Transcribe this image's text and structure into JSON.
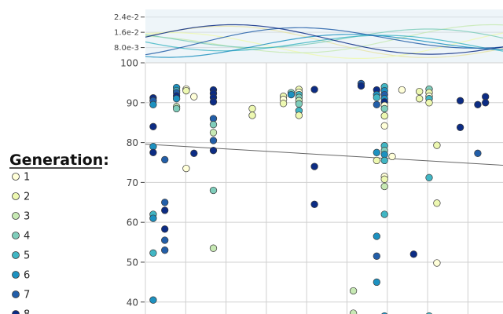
{
  "chart_data": {
    "type": "scatter",
    "legend": {
      "title": "Generation:",
      "placement": "left",
      "entries": [
        {
          "label": "1",
          "color": "#ffffd9"
        },
        {
          "label": "2",
          "color": "#edf8b1"
        },
        {
          "label": "3",
          "color": "#c7e9b4"
        },
        {
          "label": "4",
          "color": "#7fcdbb"
        },
        {
          "label": "5",
          "color": "#41b6c4"
        },
        {
          "label": "6",
          "color": "#1d91c0"
        },
        {
          "label": "7",
          "color": "#225ea8"
        },
        {
          "label": "8",
          "color": "#0c2c84"
        }
      ]
    },
    "y_axis": {
      "ylim": [
        37,
        100
      ],
      "ticks": [
        40,
        50,
        60,
        70,
        80,
        90,
        100
      ]
    },
    "x_axis": {
      "xlim": [
        0,
        9.2
      ],
      "category_gridlines": 10
    },
    "grid": true,
    "trendline": {
      "x": [
        0,
        9.2
      ],
      "y": [
        79.6,
        74.3
      ]
    },
    "density_panel": {
      "ticks": [
        "8.0e-3",
        "1.6e-2",
        "2.4e-2"
      ],
      "tick_values": [
        0.008,
        0.016,
        0.024
      ],
      "ylim": [
        0,
        0.028
      ]
    },
    "points": [
      {
        "x": 0.2,
        "y": 91.2,
        "g": 8
      },
      {
        "x": 0.2,
        "y": 90.5,
        "g": 7
      },
      {
        "x": 0.2,
        "y": 89.5,
        "g": 6
      },
      {
        "x": 0.2,
        "y": 84,
        "g": 8
      },
      {
        "x": 0.2,
        "y": 79,
        "g": 6
      },
      {
        "x": 0.2,
        "y": 77.5,
        "g": 8
      },
      {
        "x": 0.2,
        "y": 62,
        "g": 5
      },
      {
        "x": 0.2,
        "y": 61,
        "g": 6
      },
      {
        "x": 0.2,
        "y": 52.3,
        "g": 5
      },
      {
        "x": 0.2,
        "y": 40.5,
        "g": 6
      },
      {
        "x": 0.5,
        "y": 75.7,
        "g": 7
      },
      {
        "x": 0.5,
        "y": 65,
        "g": 7
      },
      {
        "x": 0.5,
        "y": 63,
        "g": 8
      },
      {
        "x": 0.5,
        "y": 58.3,
        "g": 8
      },
      {
        "x": 0.5,
        "y": 55.5,
        "g": 7
      },
      {
        "x": 0.5,
        "y": 53,
        "g": 7
      },
      {
        "x": 0.8,
        "y": 93.8,
        "g": 6
      },
      {
        "x": 0.8,
        "y": 93,
        "g": 5
      },
      {
        "x": 0.8,
        "y": 92.5,
        "g": 7
      },
      {
        "x": 0.8,
        "y": 91.7,
        "g": 8
      },
      {
        "x": 0.8,
        "y": 91,
        "g": 6
      },
      {
        "x": 0.8,
        "y": 89,
        "g": 3
      },
      {
        "x": 0.8,
        "y": 88.5,
        "g": 4
      },
      {
        "x": 1.05,
        "y": 93.4,
        "g": 1
      },
      {
        "x": 1.05,
        "y": 73.5,
        "g": 1
      },
      {
        "x": 1.05,
        "y": 93,
        "g": 2
      },
      {
        "x": 1.25,
        "y": 91.5,
        "g": 1
      },
      {
        "x": 1.25,
        "y": 77.3,
        "g": 8
      },
      {
        "x": 1.75,
        "y": 93.2,
        "g": 8
      },
      {
        "x": 1.75,
        "y": 92.3,
        "g": 8
      },
      {
        "x": 1.75,
        "y": 91.3,
        "g": 8
      },
      {
        "x": 1.75,
        "y": 90.2,
        "g": 8
      },
      {
        "x": 1.75,
        "y": 86,
        "g": 7
      },
      {
        "x": 1.75,
        "y": 84.5,
        "g": 4
      },
      {
        "x": 1.75,
        "y": 82.5,
        "g": 3
      },
      {
        "x": 1.75,
        "y": 80.5,
        "g": 7
      },
      {
        "x": 1.75,
        "y": 78,
        "g": 8
      },
      {
        "x": 1.75,
        "y": 68,
        "g": 4
      },
      {
        "x": 1.75,
        "y": 53.5,
        "g": 3
      },
      {
        "x": 2.75,
        "y": 88.5,
        "g": 2
      },
      {
        "x": 2.75,
        "y": 86.8,
        "g": 2
      },
      {
        "x": 3.55,
        "y": 91.6,
        "g": 2
      },
      {
        "x": 3.55,
        "y": 90.8,
        "g": 1
      },
      {
        "x": 3.55,
        "y": 89.8,
        "g": 2
      },
      {
        "x": 3.75,
        "y": 92.5,
        "g": 4
      },
      {
        "x": 3.75,
        "y": 92,
        "g": 6
      },
      {
        "x": 3.95,
        "y": 93.3,
        "g": 2
      },
      {
        "x": 3.95,
        "y": 92.6,
        "g": 1
      },
      {
        "x": 3.95,
        "y": 92,
        "g": 5
      },
      {
        "x": 3.95,
        "y": 91.3,
        "g": 4
      },
      {
        "x": 3.95,
        "y": 90.5,
        "g": 3
      },
      {
        "x": 3.95,
        "y": 89.7,
        "g": 4
      },
      {
        "x": 3.95,
        "y": 88,
        "g": 5
      },
      {
        "x": 3.95,
        "y": 86.8,
        "g": 2
      },
      {
        "x": 4.35,
        "y": 93.3,
        "g": 8
      },
      {
        "x": 4.35,
        "y": 74,
        "g": 8
      },
      {
        "x": 4.35,
        "y": 64.5,
        "g": 8
      },
      {
        "x": 5.55,
        "y": 94.8,
        "g": 7
      },
      {
        "x": 5.55,
        "y": 94.2,
        "g": 8
      },
      {
        "x": 5.35,
        "y": 42.8,
        "g": 3
      },
      {
        "x": 5.35,
        "y": 37.2,
        "g": 3
      },
      {
        "x": 5.95,
        "y": 93.2,
        "g": 8
      },
      {
        "x": 5.95,
        "y": 92,
        "g": 6
      },
      {
        "x": 5.95,
        "y": 91.3,
        "g": 5
      },
      {
        "x": 5.95,
        "y": 89.5,
        "g": 7
      },
      {
        "x": 5.95,
        "y": 77.5,
        "g": 6
      },
      {
        "x": 5.95,
        "y": 75.5,
        "g": 2
      },
      {
        "x": 5.95,
        "y": 56.5,
        "g": 6
      },
      {
        "x": 5.95,
        "y": 51.5,
        "g": 7
      },
      {
        "x": 5.95,
        "y": 45,
        "g": 6
      },
      {
        "x": 6.15,
        "y": 94,
        "g": 5
      },
      {
        "x": 6.15,
        "y": 93,
        "g": 6
      },
      {
        "x": 6.15,
        "y": 92,
        "g": 7
      },
      {
        "x": 6.15,
        "y": 91,
        "g": 6
      },
      {
        "x": 6.15,
        "y": 90.2,
        "g": 8
      },
      {
        "x": 6.15,
        "y": 89.3,
        "g": 1
      },
      {
        "x": 6.15,
        "y": 88.5,
        "g": 4
      },
      {
        "x": 6.15,
        "y": 86.7,
        "g": 2
      },
      {
        "x": 6.15,
        "y": 84.2,
        "g": 1
      },
      {
        "x": 6.15,
        "y": 79.2,
        "g": 5
      },
      {
        "x": 6.15,
        "y": 78,
        "g": 4
      },
      {
        "x": 6.15,
        "y": 77,
        "g": 6
      },
      {
        "x": 6.15,
        "y": 75.5,
        "g": 5
      },
      {
        "x": 6.15,
        "y": 71.5,
        "g": 1
      },
      {
        "x": 6.15,
        "y": 70.8,
        "g": 2
      },
      {
        "x": 6.15,
        "y": 69,
        "g": 3
      },
      {
        "x": 6.15,
        "y": 62,
        "g": 5
      },
      {
        "x": 6.15,
        "y": 36.5,
        "g": 6
      },
      {
        "x": 6.35,
        "y": 76.5,
        "g": 1
      },
      {
        "x": 6.6,
        "y": 93.2,
        "g": 1
      },
      {
        "x": 6.9,
        "y": 52,
        "g": 8
      },
      {
        "x": 7.05,
        "y": 92.8,
        "g": 2
      },
      {
        "x": 7.05,
        "y": 91,
        "g": 2
      },
      {
        "x": 7.3,
        "y": 93.4,
        "g": 4
      },
      {
        "x": 7.3,
        "y": 92.5,
        "g": 2
      },
      {
        "x": 7.3,
        "y": 91.6,
        "g": 1
      },
      {
        "x": 7.3,
        "y": 91,
        "g": 5
      },
      {
        "x": 7.3,
        "y": 90,
        "g": 2
      },
      {
        "x": 7.3,
        "y": 71.2,
        "g": 5
      },
      {
        "x": 7.3,
        "y": 36.5,
        "g": 5
      },
      {
        "x": 7.5,
        "y": 79.3,
        "g": 2
      },
      {
        "x": 7.5,
        "y": 64.8,
        "g": 2
      },
      {
        "x": 7.5,
        "y": 49.8,
        "g": 1
      },
      {
        "x": 8.1,
        "y": 90.5,
        "g": 8
      },
      {
        "x": 8.1,
        "y": 83.8,
        "g": 8
      },
      {
        "x": 8.55,
        "y": 89.5,
        "g": 8
      },
      {
        "x": 8.55,
        "y": 77.3,
        "g": 7
      },
      {
        "x": 8.75,
        "y": 91.5,
        "g": 8
      },
      {
        "x": 8.75,
        "y": 90,
        "g": 8
      }
    ]
  }
}
